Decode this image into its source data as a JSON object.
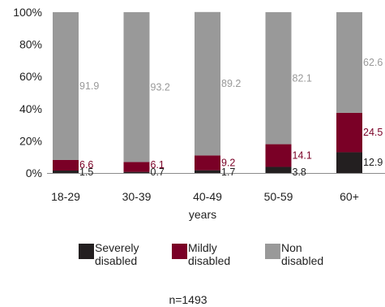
{
  "chart_data": {
    "type": "bar",
    "stacked": true,
    "categories": [
      "18-29",
      "30-39",
      "40-49",
      "50-59",
      "60+"
    ],
    "xlabel": "years",
    "ylabel": "",
    "ylim": [
      0,
      100
    ],
    "y_ticks": [
      "0%",
      "20%",
      "40%",
      "60%",
      "80%",
      "100%"
    ],
    "grid": false,
    "legend_position": "bottom",
    "series": [
      {
        "name": "Severely disabled",
        "legend_lines": [
          "Severely",
          "disabled"
        ],
        "color": "#231f20",
        "label_color": "#222222",
        "values": [
          1.5,
          0.7,
          1.7,
          3.8,
          12.9
        ],
        "labels": [
          "1.5",
          "0.7",
          "1.7",
          "3.8",
          "12.9"
        ]
      },
      {
        "name": "Mildly disabled",
        "legend_lines": [
          "Mildly",
          "disabled"
        ],
        "color": "#7a0026",
        "label_color": "#7a0026",
        "values": [
          6.6,
          6.1,
          9.2,
          14.1,
          24.5
        ],
        "labels": [
          "6.6",
          "6.1",
          "9.2",
          "14.1",
          "24.5"
        ]
      },
      {
        "name": "Non disabled",
        "legend_lines": [
          "Non",
          "disabled"
        ],
        "color": "#999999",
        "label_color": "#999999",
        "values": [
          91.9,
          93.2,
          89.2,
          82.1,
          62.6
        ],
        "labels": [
          "91.9",
          "93.2",
          "89.2",
          "82.1",
          "62.6"
        ]
      }
    ],
    "note": "n=1493"
  }
}
